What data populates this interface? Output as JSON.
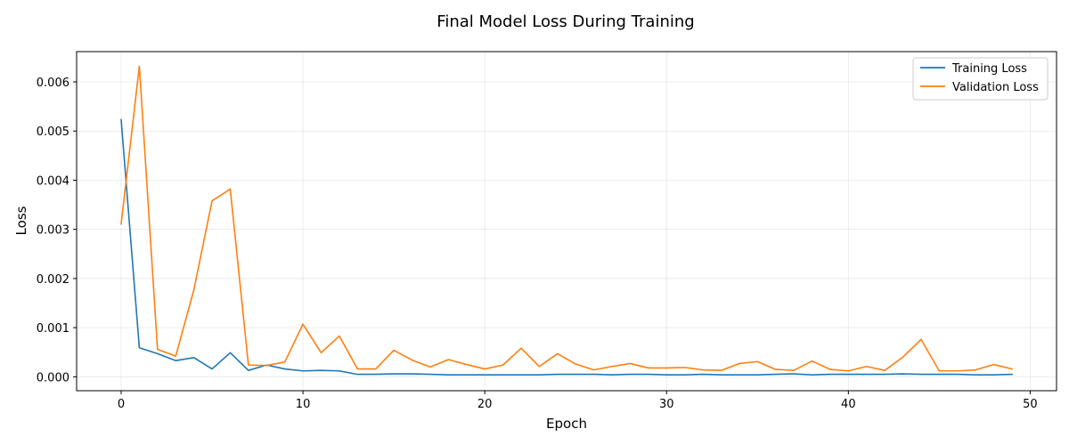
{
  "chart_data": {
    "type": "line",
    "title": "Final Model Loss During Training",
    "xlabel": "Epoch",
    "ylabel": "Loss",
    "xlim": [
      -2.45,
      51.45
    ],
    "ylim": [
      -0.000283,
      0.006616
    ],
    "xticks": [
      0,
      10,
      20,
      30,
      40,
      50
    ],
    "xtick_labels": [
      "0",
      "10",
      "20",
      "30",
      "40",
      "50"
    ],
    "yticks": [
      0.0,
      0.001,
      0.002,
      0.003,
      0.004,
      0.005,
      0.006
    ],
    "ytick_labels": [
      "0.000",
      "0.001",
      "0.002",
      "0.003",
      "0.004",
      "0.005",
      "0.006"
    ],
    "grid": true,
    "legend_position": "top-right",
    "x": [
      0,
      1,
      2,
      3,
      4,
      5,
      6,
      7,
      8,
      9,
      10,
      11,
      12,
      13,
      14,
      15,
      16,
      17,
      18,
      19,
      20,
      21,
      22,
      23,
      24,
      25,
      26,
      27,
      28,
      29,
      30,
      31,
      32,
      33,
      34,
      35,
      36,
      37,
      38,
      39,
      40,
      41,
      42,
      43,
      44,
      45,
      46,
      47,
      48,
      49
    ],
    "series": [
      {
        "name": "Training Loss",
        "color": "#1f77b4",
        "values": [
          0.00523,
          0.00059,
          0.00047,
          0.00033,
          0.00039,
          0.00016,
          0.00049,
          0.00013,
          0.00024,
          0.00016,
          0.00012,
          0.00013,
          0.00012,
          5e-05,
          5e-05,
          6e-05,
          6e-05,
          5e-05,
          4e-05,
          4e-05,
          4e-05,
          4e-05,
          4e-05,
          4e-05,
          5e-05,
          5e-05,
          5e-05,
          4e-05,
          5e-05,
          5e-05,
          4e-05,
          4e-05,
          5e-05,
          4e-05,
          4e-05,
          4e-05,
          5e-05,
          6e-05,
          4e-05,
          5e-05,
          5e-05,
          5e-05,
          5e-05,
          6e-05,
          5e-05,
          5e-05,
          5e-05,
          4e-05,
          4e-05,
          5e-05
        ]
      },
      {
        "name": "Validation Loss",
        "color": "#ff7f0e",
        "values": [
          0.00311,
          0.00632,
          0.00056,
          0.00042,
          0.00177,
          0.00358,
          0.00382,
          0.00024,
          0.00023,
          0.0003,
          0.00107,
          0.00049,
          0.00083,
          0.00016,
          0.00016,
          0.00054,
          0.00034,
          0.0002,
          0.00035,
          0.00025,
          0.00016,
          0.00024,
          0.00058,
          0.00021,
          0.00047,
          0.00026,
          0.00014,
          0.00021,
          0.00027,
          0.00018,
          0.00018,
          0.00019,
          0.00014,
          0.00013,
          0.00027,
          0.00031,
          0.00015,
          0.00013,
          0.00032,
          0.00015,
          0.00012,
          0.00021,
          0.00013,
          0.0004,
          0.00076,
          0.00012,
          0.00012,
          0.00014,
          0.00025,
          0.00016
        ]
      }
    ]
  }
}
